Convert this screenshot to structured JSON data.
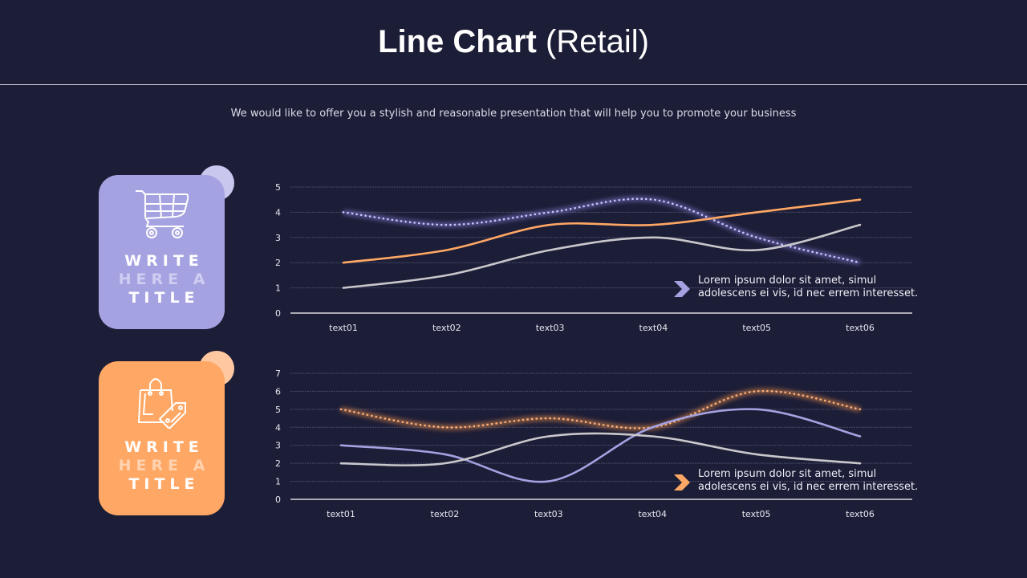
{
  "header": {
    "title_bold": "Line Chart",
    "title_light": "(Retail)",
    "subtitle": "We would like to offer you a stylish and reasonable presentation that will help you to promote your business"
  },
  "cards": [
    {
      "icon": "shopping-cart-icon",
      "line1": "WRITE",
      "line2": "HERE A",
      "line3": "TITLE",
      "color": "#a5a2e1",
      "bubble": "#c9c7ee"
    },
    {
      "icon": "shopping-bag-tag-icon",
      "line1": "WRITE",
      "line2": "HERE A",
      "line3": "TITLE",
      "color": "#ffa764",
      "bubble": "#ffc8a0"
    }
  ],
  "callouts": [
    {
      "line1": "Lorem ipsum dolor sit amet, simul",
      "line2": "adolescens ei vis, id nec errem interesset.",
      "color": "#a5a2e1"
    },
    {
      "line1": "Lorem ipsum dolor sit amet, simul",
      "line2": "adolescens ei vis, id nec errem interesset.",
      "color": "#ffa764"
    }
  ],
  "chart_data": [
    {
      "type": "line",
      "categories": [
        "text01",
        "text02",
        "text03",
        "text04",
        "text05",
        "text06"
      ],
      "ylim": [
        0,
        5
      ],
      "yticks": [
        0,
        1,
        2,
        3,
        4,
        5
      ],
      "grid": true,
      "series": [
        {
          "values": [
            4,
            3.5,
            4,
            4.5,
            3,
            2
          ],
          "color": "#8f88e6",
          "style": "dotted-glow"
        },
        {
          "values": [
            2,
            2.5,
            3.5,
            3.5,
            4,
            4.5
          ],
          "color": "#ffa764",
          "style": "solid"
        },
        {
          "values": [
            1,
            1.5,
            2.5,
            3,
            2.5,
            3.5
          ],
          "color": "#c8c8cc",
          "style": "solid"
        }
      ]
    },
    {
      "type": "line",
      "categories": [
        "text01",
        "text02",
        "text03",
        "text04",
        "text05",
        "text06"
      ],
      "ylim": [
        0,
        7
      ],
      "yticks": [
        0,
        1,
        2,
        3,
        4,
        5,
        6,
        7
      ],
      "grid": true,
      "series": [
        {
          "values": [
            5,
            4,
            4.5,
            4,
            6,
            5
          ],
          "color": "#ff9a4a",
          "style": "dotted-glow"
        },
        {
          "values": [
            3,
            2.5,
            1,
            4,
            5,
            3.5
          ],
          "color": "#a5a2e1",
          "style": "solid"
        },
        {
          "values": [
            2,
            2,
            3.5,
            3.5,
            2.5,
            2
          ],
          "color": "#c8c8cc",
          "style": "solid"
        }
      ]
    }
  ]
}
